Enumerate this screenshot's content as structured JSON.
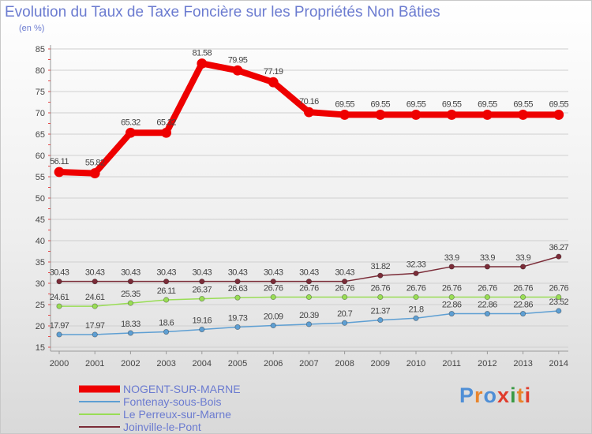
{
  "chart_data": {
    "type": "line",
    "title": "Evolution du Taux de Taxe Foncière sur les Propriétés Non Bâties",
    "ylabel": "(en %)",
    "xlabel": "",
    "categories": [
      "2000",
      "2001",
      "2002",
      "2003",
      "2004",
      "2005",
      "2006",
      "2007",
      "2008",
      "2009",
      "2010",
      "2011",
      "2012",
      "2013",
      "2014"
    ],
    "ylim": [
      15,
      85
    ],
    "yticks": [
      15,
      20,
      25,
      30,
      35,
      40,
      45,
      50,
      55,
      60,
      65,
      70,
      75,
      80,
      85
    ],
    "grid": "horizontal",
    "series": [
      {
        "name": "NOGENT-SUR-MARNE",
        "color": "#ee0000",
        "values": [
          56.11,
          55.82,
          65.32,
          65.32,
          81.58,
          79.95,
          77.19,
          70.16,
          69.55,
          69.55,
          69.55,
          69.55,
          69.55,
          69.55,
          69.55
        ]
      },
      {
        "name": "Fontenay-sous-Bois",
        "color": "#5e9fd3",
        "values": [
          17.97,
          17.97,
          18.33,
          18.6,
          19.16,
          19.73,
          20.09,
          20.39,
          20.7,
          21.37,
          21.8,
          22.86,
          22.86,
          22.86,
          23.52
        ]
      },
      {
        "name": "Le Perreux-sur-Marne",
        "color": "#99dd55",
        "values": [
          24.61,
          24.61,
          25.35,
          26.11,
          26.37,
          26.63,
          26.76,
          26.76,
          26.76,
          26.76,
          26.76,
          26.76,
          26.76,
          26.76,
          26.76
        ]
      },
      {
        "name": "Joinville-le-Pont",
        "color": "#7b2c38",
        "values": [
          30.43,
          30.43,
          30.43,
          30.43,
          30.43,
          30.43,
          30.43,
          30.43,
          30.43,
          31.82,
          32.33,
          33.9,
          33.9,
          33.9,
          36.27
        ]
      }
    ],
    "legend_position": "bottom-left"
  },
  "logo": {
    "text": "Proxiti",
    "colors": [
      "#4f8fd6",
      "#e8852c",
      "#4f8fd6",
      "#e03c2c",
      "#3a9a44",
      "#e8852c",
      "#e03c2c"
    ]
  }
}
